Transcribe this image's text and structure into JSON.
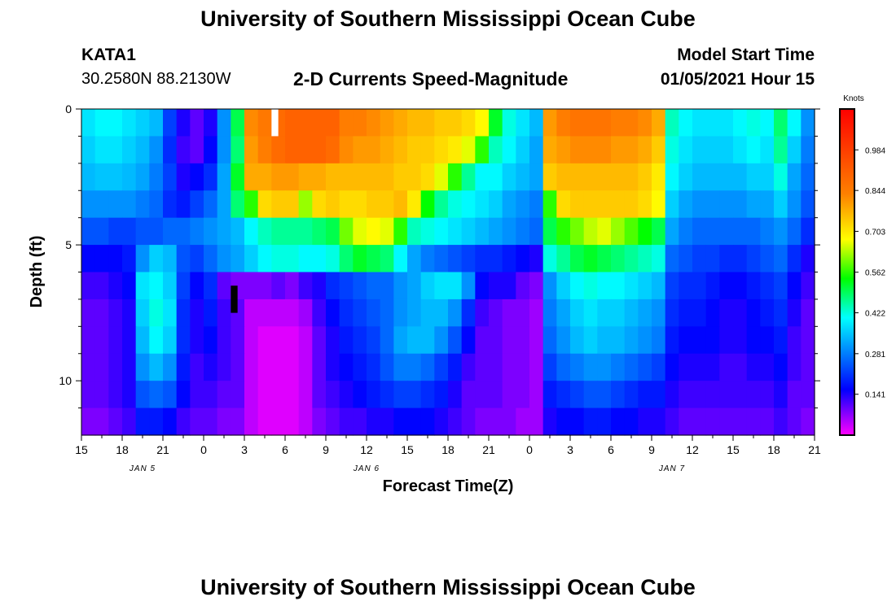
{
  "header": {
    "title_top": "University of Southern Mississippi Ocean Cube",
    "title_bottom": "University of Southern Mississippi Ocean Cube",
    "station": "KATA1",
    "coords": "30.2580N 88.2130W",
    "plot_title": "2-D Currents Speed-Magnitude",
    "model_start_label": "Model Start Time",
    "model_start_value": "01/05/2021 Hour 15"
  },
  "chart_data": {
    "type": "heatmap",
    "title": "2-D Currents Speed-Magnitude",
    "xlabel": "Forecast Time(Z)",
    "ylabel": "Depth (ft)",
    "colorbar_label": "Knots",
    "x_tick_labels": [
      "15",
      "18",
      "21",
      "0",
      "3",
      "6",
      "9",
      "12",
      "15",
      "18",
      "21",
      "0",
      "3",
      "6",
      "9",
      "12",
      "15",
      "18",
      "21"
    ],
    "date_labels": [
      "JAN 5",
      "JAN 6",
      "JAN 7"
    ],
    "y_tick_labels": [
      "0",
      "5",
      "10"
    ],
    "ylim": [
      0,
      12
    ],
    "x_range_hours": [
      0,
      54
    ],
    "colorbar_ticks": [
      "0.141",
      "0.281",
      "0.422",
      "0.562",
      "0.703",
      "0.844",
      "0.984"
    ],
    "color_range": [
      0,
      1.125
    ],
    "colors": [
      "#ff00ff",
      "#0000ff",
      "#00a0ff",
      "#00ffff",
      "#00ff00",
      "#ffff00",
      "#ff8000",
      "#ff0000"
    ],
    "depth_levels": [
      0,
      1,
      2,
      3,
      4,
      5,
      6,
      7,
      8,
      9,
      10,
      11
    ],
    "time_hours": [
      0,
      1,
      2,
      3,
      4,
      5,
      6,
      7,
      8,
      9,
      10,
      11,
      12,
      13,
      14,
      15,
      16,
      17,
      18,
      19,
      20,
      21,
      22,
      23,
      24,
      25,
      26,
      27,
      28,
      29,
      30,
      31,
      32,
      33,
      34,
      35,
      36,
      37,
      38,
      39,
      40,
      41,
      42,
      43,
      44,
      45,
      46,
      47,
      48,
      49,
      50,
      51,
      52,
      53
    ],
    "speed_by_depth": [
      [
        0.38,
        0.4,
        0.4,
        0.38,
        0.36,
        0.34,
        0.22,
        0.14,
        0.1,
        0.14,
        0.3,
        0.5,
        0.82,
        0.85,
        0.88,
        0.9,
        0.9,
        0.9,
        0.9,
        0.84,
        0.84,
        0.82,
        0.8,
        0.78,
        0.76,
        0.76,
        0.74,
        0.74,
        0.72,
        0.68,
        0.52,
        0.42,
        0.38,
        0.34,
        0.8,
        0.84,
        0.86,
        0.86,
        0.86,
        0.84,
        0.84,
        0.82,
        0.78,
        0.44,
        0.4,
        0.38,
        0.38,
        0.38,
        0.4,
        0.42,
        0.4,
        0.48,
        0.4,
        0.3
      ],
      [
        0.36,
        0.38,
        0.38,
        0.36,
        0.34,
        0.3,
        0.2,
        0.12,
        0.1,
        0.16,
        0.3,
        0.48,
        0.8,
        0.84,
        0.88,
        0.9,
        0.9,
        0.9,
        0.88,
        0.82,
        0.8,
        0.8,
        0.78,
        0.76,
        0.74,
        0.74,
        0.72,
        0.7,
        0.66,
        0.56,
        0.44,
        0.4,
        0.36,
        0.32,
        0.78,
        0.8,
        0.82,
        0.82,
        0.82,
        0.8,
        0.8,
        0.78,
        0.74,
        0.42,
        0.38,
        0.36,
        0.36,
        0.36,
        0.38,
        0.4,
        0.38,
        0.46,
        0.36,
        0.28
      ],
      [
        0.34,
        0.35,
        0.35,
        0.34,
        0.32,
        0.28,
        0.22,
        0.14,
        0.16,
        0.2,
        0.32,
        0.52,
        0.78,
        0.78,
        0.8,
        0.8,
        0.78,
        0.78,
        0.76,
        0.76,
        0.76,
        0.76,
        0.76,
        0.74,
        0.74,
        0.72,
        0.66,
        0.56,
        0.46,
        0.4,
        0.4,
        0.36,
        0.34,
        0.32,
        0.74,
        0.76,
        0.76,
        0.76,
        0.76,
        0.76,
        0.76,
        0.74,
        0.7,
        0.4,
        0.36,
        0.34,
        0.34,
        0.34,
        0.34,
        0.36,
        0.36,
        0.42,
        0.32,
        0.26
      ],
      [
        0.3,
        0.3,
        0.3,
        0.3,
        0.28,
        0.26,
        0.2,
        0.18,
        0.22,
        0.26,
        0.32,
        0.48,
        0.56,
        0.72,
        0.74,
        0.74,
        0.62,
        0.72,
        0.74,
        0.72,
        0.72,
        0.74,
        0.74,
        0.76,
        0.7,
        0.54,
        0.46,
        0.42,
        0.4,
        0.38,
        0.36,
        0.32,
        0.3,
        0.28,
        0.56,
        0.72,
        0.74,
        0.74,
        0.74,
        0.74,
        0.74,
        0.72,
        0.68,
        0.36,
        0.32,
        0.3,
        0.3,
        0.3,
        0.3,
        0.32,
        0.32,
        0.36,
        0.3,
        0.24
      ],
      [
        0.24,
        0.24,
        0.22,
        0.22,
        0.24,
        0.24,
        0.26,
        0.26,
        0.28,
        0.3,
        0.32,
        0.34,
        0.4,
        0.44,
        0.46,
        0.46,
        0.46,
        0.48,
        0.5,
        0.6,
        0.66,
        0.68,
        0.66,
        0.56,
        0.44,
        0.42,
        0.4,
        0.38,
        0.36,
        0.34,
        0.32,
        0.3,
        0.28,
        0.26,
        0.5,
        0.56,
        0.6,
        0.64,
        0.66,
        0.62,
        0.58,
        0.54,
        0.5,
        0.32,
        0.28,
        0.26,
        0.26,
        0.26,
        0.26,
        0.26,
        0.28,
        0.3,
        0.26,
        0.2
      ],
      [
        0.16,
        0.16,
        0.16,
        0.18,
        0.3,
        0.36,
        0.34,
        0.24,
        0.22,
        0.26,
        0.3,
        0.32,
        0.36,
        0.4,
        0.42,
        0.42,
        0.4,
        0.4,
        0.42,
        0.48,
        0.52,
        0.5,
        0.48,
        0.4,
        0.32,
        0.28,
        0.26,
        0.24,
        0.22,
        0.2,
        0.2,
        0.18,
        0.16,
        0.14,
        0.42,
        0.46,
        0.5,
        0.52,
        0.5,
        0.48,
        0.46,
        0.44,
        0.42,
        0.26,
        0.24,
        0.22,
        0.22,
        0.2,
        0.2,
        0.22,
        0.24,
        0.26,
        0.2,
        0.14
      ],
      [
        0.12,
        0.12,
        0.14,
        0.16,
        0.38,
        0.4,
        0.36,
        0.22,
        0.16,
        0.2,
        0.1,
        0.08,
        0.08,
        0.08,
        0.1,
        0.08,
        0.12,
        0.14,
        0.2,
        0.22,
        0.24,
        0.26,
        0.26,
        0.3,
        0.32,
        0.36,
        0.38,
        0.38,
        0.3,
        0.16,
        0.14,
        0.14,
        0.1,
        0.08,
        0.3,
        0.36,
        0.4,
        0.42,
        0.4,
        0.4,
        0.38,
        0.36,
        0.34,
        0.22,
        0.2,
        0.2,
        0.18,
        0.16,
        0.16,
        0.18,
        0.2,
        0.22,
        0.16,
        0.12
      ],
      [
        0.1,
        0.1,
        0.12,
        0.14,
        0.36,
        0.42,
        0.38,
        0.2,
        0.14,
        0.18,
        0.12,
        0.1,
        0.04,
        0.04,
        0.04,
        0.04,
        0.06,
        0.12,
        0.16,
        0.2,
        0.22,
        0.24,
        0.26,
        0.3,
        0.32,
        0.34,
        0.34,
        0.3,
        0.2,
        0.12,
        0.1,
        0.08,
        0.08,
        0.06,
        0.28,
        0.32,
        0.36,
        0.38,
        0.36,
        0.36,
        0.34,
        0.32,
        0.3,
        0.2,
        0.18,
        0.18,
        0.16,
        0.14,
        0.14,
        0.16,
        0.18,
        0.2,
        0.14,
        0.1
      ],
      [
        0.1,
        0.1,
        0.12,
        0.14,
        0.34,
        0.4,
        0.36,
        0.2,
        0.14,
        0.16,
        0.12,
        0.1,
        0.04,
        0.02,
        0.02,
        0.02,
        0.04,
        0.1,
        0.14,
        0.18,
        0.2,
        0.22,
        0.26,
        0.32,
        0.34,
        0.34,
        0.3,
        0.24,
        0.16,
        0.1,
        0.1,
        0.08,
        0.08,
        0.06,
        0.26,
        0.3,
        0.34,
        0.36,
        0.34,
        0.34,
        0.32,
        0.3,
        0.28,
        0.18,
        0.16,
        0.16,
        0.16,
        0.14,
        0.14,
        0.16,
        0.16,
        0.18,
        0.12,
        0.1
      ],
      [
        0.1,
        0.1,
        0.12,
        0.14,
        0.3,
        0.34,
        0.3,
        0.18,
        0.12,
        0.14,
        0.12,
        0.1,
        0.04,
        0.02,
        0.02,
        0.02,
        0.04,
        0.1,
        0.14,
        0.16,
        0.18,
        0.2,
        0.24,
        0.28,
        0.28,
        0.26,
        0.22,
        0.18,
        0.12,
        0.1,
        0.1,
        0.08,
        0.08,
        0.06,
        0.22,
        0.26,
        0.28,
        0.3,
        0.3,
        0.28,
        0.26,
        0.24,
        0.22,
        0.16,
        0.14,
        0.14,
        0.14,
        0.12,
        0.12,
        0.14,
        0.14,
        0.16,
        0.12,
        0.1
      ],
      [
        0.1,
        0.1,
        0.12,
        0.14,
        0.24,
        0.26,
        0.24,
        0.16,
        0.12,
        0.12,
        0.1,
        0.1,
        0.04,
        0.02,
        0.02,
        0.02,
        0.04,
        0.1,
        0.12,
        0.14,
        0.16,
        0.18,
        0.2,
        0.22,
        0.22,
        0.2,
        0.18,
        0.14,
        0.1,
        0.1,
        0.1,
        0.08,
        0.08,
        0.06,
        0.18,
        0.2,
        0.22,
        0.24,
        0.24,
        0.22,
        0.2,
        0.18,
        0.18,
        0.14,
        0.12,
        0.12,
        0.12,
        0.12,
        0.12,
        0.12,
        0.12,
        0.14,
        0.1,
        0.1
      ],
      [
        0.08,
        0.08,
        0.1,
        0.12,
        0.18,
        0.18,
        0.16,
        0.12,
        0.1,
        0.1,
        0.08,
        0.08,
        0.04,
        0.02,
        0.02,
        0.02,
        0.04,
        0.08,
        0.1,
        0.12,
        0.12,
        0.14,
        0.14,
        0.16,
        0.16,
        0.16,
        0.14,
        0.12,
        0.1,
        0.08,
        0.08,
        0.08,
        0.06,
        0.06,
        0.14,
        0.16,
        0.16,
        0.18,
        0.18,
        0.16,
        0.16,
        0.14,
        0.14,
        0.12,
        0.1,
        0.1,
        0.1,
        0.1,
        0.1,
        0.1,
        0.1,
        0.12,
        0.1,
        0.08
      ]
    ],
    "missing_marks": [
      {
        "hour": 14,
        "depth": 0.5,
        "color": "#ffffff"
      },
      {
        "hour": 11,
        "depth": 7,
        "color": "#000000"
      }
    ]
  }
}
